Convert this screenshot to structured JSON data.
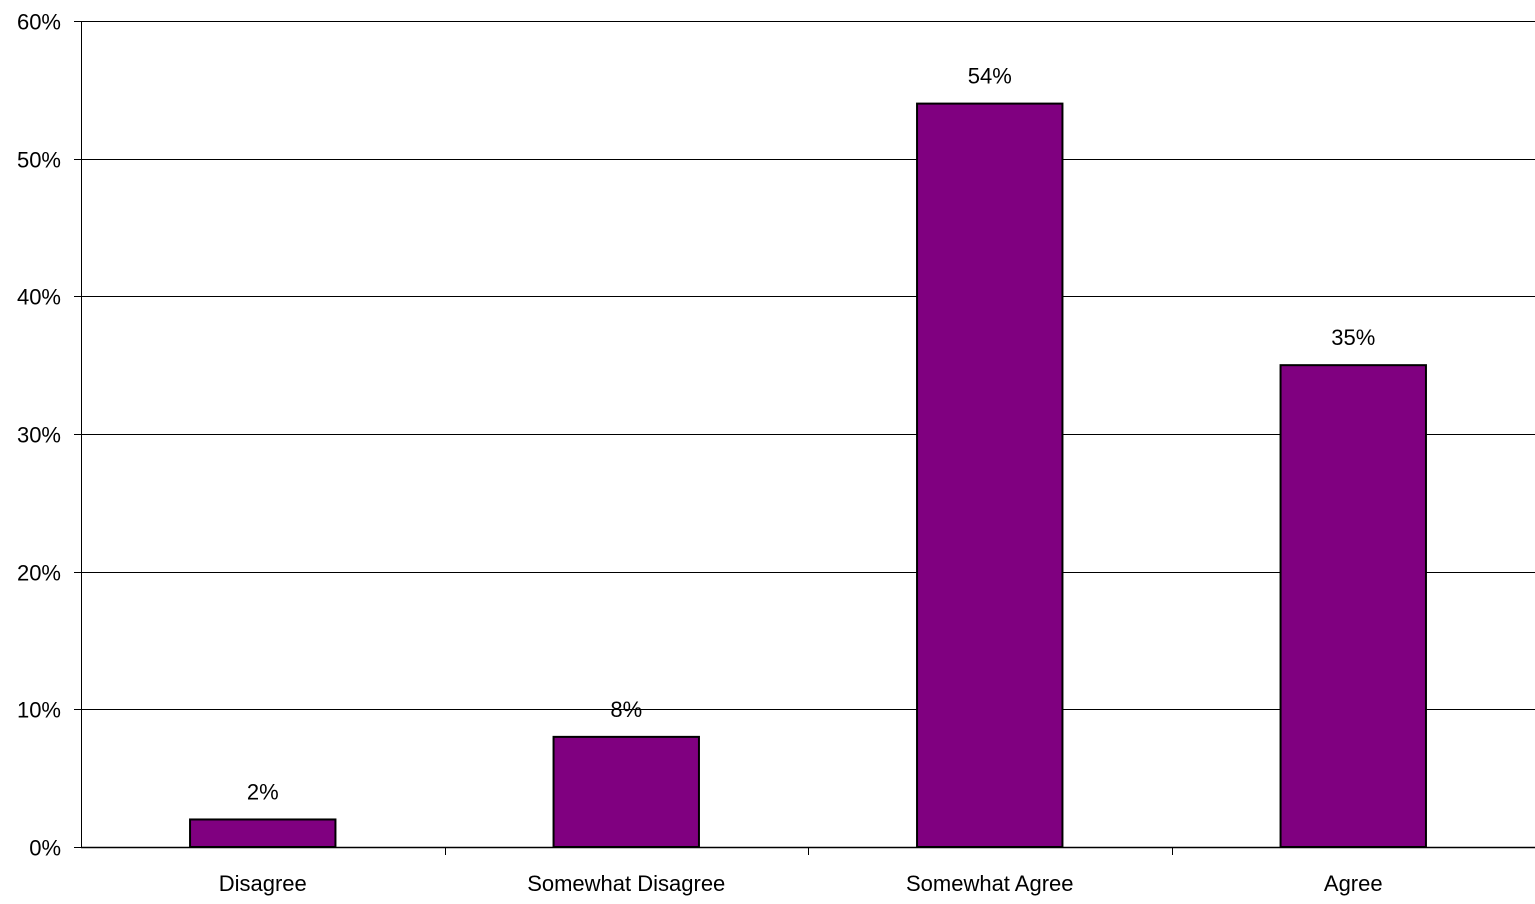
{
  "chart_data": {
    "type": "bar",
    "categories": [
      "Disagree",
      "Somewhat Disagree",
      "Somewhat Agree",
      "Agree"
    ],
    "values": [
      2,
      8,
      54,
      35
    ],
    "data_labels": [
      "2%",
      "8%",
      "54%",
      "35%"
    ],
    "ylim": [
      0,
      60
    ],
    "yticks": [
      0,
      10,
      20,
      30,
      40,
      50,
      60
    ],
    "ytick_labels": [
      "0%",
      "10%",
      "20%",
      "30%",
      "40%",
      "50%",
      "60%"
    ],
    "title": "",
    "xlabel": "",
    "ylabel": "",
    "grid": true,
    "legend": "none"
  },
  "colors": {
    "bar_fill": "#800080",
    "bar_stroke": "#000000",
    "grid": "#000000",
    "axis": "#000000"
  }
}
